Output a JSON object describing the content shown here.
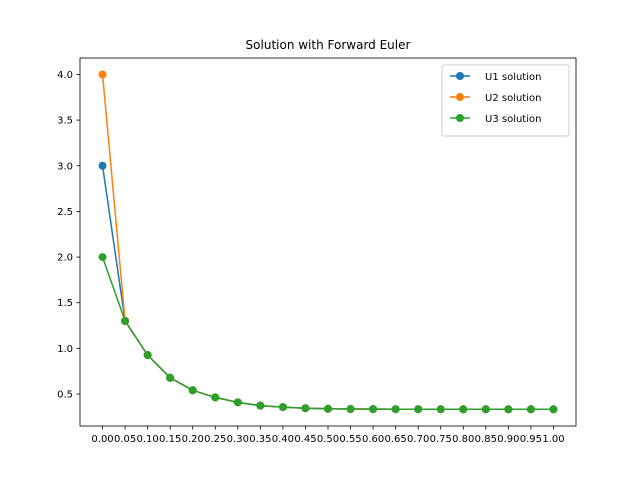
{
  "chart_data": {
    "type": "line",
    "title": "Solution with Forward Euler",
    "xlabel": "",
    "ylabel": "",
    "x": [
      0.0,
      0.05,
      0.1,
      0.15,
      0.2,
      0.25,
      0.3,
      0.35,
      0.4,
      0.45,
      0.5,
      0.55,
      0.6,
      0.65,
      0.7,
      0.75,
      0.8,
      0.85,
      0.9,
      0.95,
      1.0
    ],
    "x_tick_labels": [
      "0.00",
      "0.05",
      "0.10",
      "0.15",
      "0.20",
      "0.25",
      "0.30",
      "0.35",
      "0.40",
      "0.45",
      "0.50",
      "0.55",
      "0.60",
      "0.65",
      "0.70",
      "0.75",
      "0.80",
      "0.85",
      "0.90",
      "0.95",
      "1.00"
    ],
    "y_ticks": [
      0.5,
      1.0,
      1.5,
      2.0,
      2.5,
      3.0,
      3.5,
      4.0
    ],
    "y_tick_labels": [
      "0.5",
      "1.0",
      "1.5",
      "2.0",
      "2.5",
      "3.0",
      "3.5",
      "4.0"
    ],
    "xlim": [
      -0.05,
      1.05
    ],
    "ylim": [
      0.15,
      4.18
    ],
    "grid": false,
    "legend_position": "top-right",
    "marker": "circle",
    "series": [
      {
        "name": "U1 solution",
        "color": "#1f77b4",
        "values": [
          3.0,
          1.3,
          0.927,
          0.678,
          0.541,
          0.463,
          0.409,
          0.373,
          0.357,
          0.345,
          0.339,
          0.336,
          0.335,
          0.334,
          0.334,
          0.334,
          0.333,
          0.333,
          0.333,
          0.333,
          0.333
        ]
      },
      {
        "name": "U2 solution",
        "color": "#ff7f0e",
        "values": [
          4.0,
          1.3,
          0.927,
          0.678,
          0.541,
          0.463,
          0.409,
          0.373,
          0.357,
          0.345,
          0.339,
          0.336,
          0.335,
          0.334,
          0.334,
          0.334,
          0.333,
          0.333,
          0.333,
          0.333,
          0.333
        ]
      },
      {
        "name": "U3 solution",
        "color": "#2ca02c",
        "values": [
          2.0,
          1.3,
          0.927,
          0.678,
          0.541,
          0.463,
          0.409,
          0.373,
          0.357,
          0.345,
          0.339,
          0.336,
          0.335,
          0.334,
          0.334,
          0.334,
          0.333,
          0.333,
          0.333,
          0.333,
          0.333
        ]
      }
    ]
  }
}
